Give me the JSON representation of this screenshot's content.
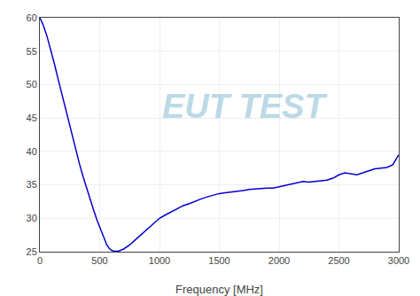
{
  "chart_data": {
    "type": "line",
    "xlabel": "Frequency [MHz]",
    "x": [
      0,
      30,
      60,
      90,
      120,
      150,
      180,
      210,
      240,
      270,
      300,
      330,
      360,
      390,
      420,
      450,
      480,
      510,
      540,
      560,
      580,
      600,
      630,
      660,
      700,
      750,
      800,
      850,
      900,
      950,
      1000,
      1050,
      1100,
      1150,
      1200,
      1250,
      1300,
      1350,
      1400,
      1450,
      1500,
      1550,
      1600,
      1650,
      1700,
      1750,
      1800,
      1850,
      1900,
      1950,
      2000,
      2050,
      2100,
      2150,
      2200,
      2250,
      2300,
      2350,
      2400,
      2450,
      2500,
      2550,
      2600,
      2650,
      2700,
      2750,
      2800,
      2850,
      2900,
      2950,
      3000
    ],
    "values": [
      60.0,
      58.8,
      57.2,
      55.3,
      53.2,
      51.0,
      48.8,
      46.6,
      44.4,
      42.2,
      40.2,
      38.2,
      36.3,
      34.5,
      32.8,
      31.2,
      29.6,
      28.2,
      26.8,
      26.0,
      25.5,
      25.2,
      25.05,
      25.1,
      25.4,
      26.0,
      26.8,
      27.6,
      28.5,
      29.2,
      30.0,
      30.5,
      31.0,
      31.5,
      31.9,
      32.2,
      32.6,
      32.9,
      33.2,
      33.5,
      33.7,
      33.8,
      33.9,
      34.0,
      34.15,
      34.3,
      34.4,
      34.5,
      34.5,
      34.5,
      34.7,
      35.0,
      35.2,
      35.4,
      35.5,
      35.4,
      35.5,
      35.6,
      35.7,
      36.0,
      36.5,
      36.8,
      36.6,
      36.5,
      36.8,
      37.1,
      37.4,
      37.5,
      37.6,
      38.0,
      39.5
    ],
    "color": "#0000cc",
    "xlim": [
      0,
      3000
    ],
    "ylim": [
      25,
      60
    ],
    "xticks": [
      0,
      500,
      1000,
      1500,
      2000,
      2500,
      3000
    ],
    "yticks": [
      25,
      30,
      35,
      40,
      45,
      50,
      55,
      60
    ],
    "grid": true,
    "annotations": [
      "EUT TEST"
    ]
  }
}
